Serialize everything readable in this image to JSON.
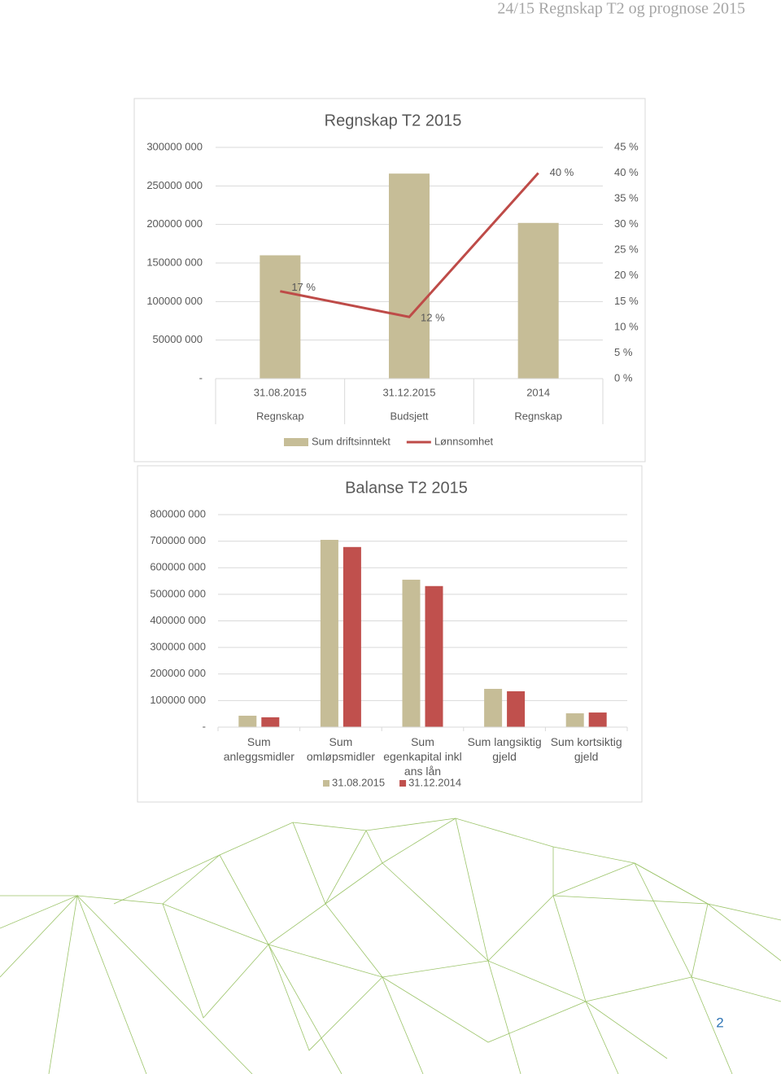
{
  "header": {
    "title": "24/15 Regnskap T2 og prognose 2015"
  },
  "chart_data": [
    {
      "type": "bar",
      "title": "Regnskap T2 2015",
      "categories": [
        "31.08.2015",
        "31.12.2015",
        "2014"
      ],
      "category_sublabels": [
        "Regnskap",
        "Budsjett",
        "Regnskap"
      ],
      "series": [
        {
          "name": "Sum driftsinntekt",
          "type": "bar",
          "color": "#c6bd97",
          "values": [
            160000000,
            266000000,
            202000000
          ]
        },
        {
          "name": "Lønnsomhet",
          "type": "line",
          "axis": "y2",
          "color": "#be4b48",
          "values": [
            17,
            12,
            40
          ],
          "value_labels": [
            "17 %",
            "12 %",
            "40 %"
          ]
        }
      ],
      "ylim": [
        0,
        300000000
      ],
      "yticks": [
        {
          "value": 0,
          "label": "-"
        },
        {
          "value": 50000000,
          "label": "50000 000"
        },
        {
          "value": 100000000,
          "label": "100000 000"
        },
        {
          "value": 150000000,
          "label": "150000 000"
        },
        {
          "value": 200000000,
          "label": "200000 000"
        },
        {
          "value": 250000000,
          "label": "250000 000"
        },
        {
          "value": 300000000,
          "label": "300000 000"
        }
      ],
      "y2lim": [
        0,
        45
      ],
      "y2ticks": [
        {
          "value": 0,
          "label": "0 %"
        },
        {
          "value": 5,
          "label": "5 %"
        },
        {
          "value": 10,
          "label": "10 %"
        },
        {
          "value": 15,
          "label": "15 %"
        },
        {
          "value": 20,
          "label": "20 %"
        },
        {
          "value": 25,
          "label": "25 %"
        },
        {
          "value": 30,
          "label": "30 %"
        },
        {
          "value": 35,
          "label": "35 %"
        },
        {
          "value": 40,
          "label": "40 %"
        },
        {
          "value": 45,
          "label": "45 %"
        }
      ],
      "grid": true,
      "legend": "bottom"
    },
    {
      "type": "bar",
      "title": "Balanse T2 2015",
      "categories": [
        "Sum anleggsmidler",
        "Sum omløpsmidler",
        "Sum egenkapital inkl ans lån",
        "Sum langsiktig gjeld",
        "Sum kortsiktig gjeld"
      ],
      "series": [
        {
          "name": "31.08.2015",
          "color": "#c6bd97",
          "values": [
            43000000,
            705000000,
            555000000,
            144000000,
            52000000
          ]
        },
        {
          "name": "31.12.2014",
          "color": "#c0504d",
          "values": [
            37000000,
            678000000,
            531000000,
            135000000,
            55000000
          ]
        }
      ],
      "ylim": [
        0,
        800000000
      ],
      "yticks": [
        {
          "value": 0,
          "label": "-"
        },
        {
          "value": 100000000,
          "label": "100000 000"
        },
        {
          "value": 200000000,
          "label": "200000 000"
        },
        {
          "value": 300000000,
          "label": "300000 000"
        },
        {
          "value": 400000000,
          "label": "400000 000"
        },
        {
          "value": 500000000,
          "label": "500000 000"
        },
        {
          "value": 600000000,
          "label": "600000 000"
        },
        {
          "value": 700000000,
          "label": "700000 000"
        },
        {
          "value": 800000000,
          "label": "800000 000"
        }
      ],
      "grid": true,
      "legend": "bottom"
    }
  ],
  "page_number": "2"
}
